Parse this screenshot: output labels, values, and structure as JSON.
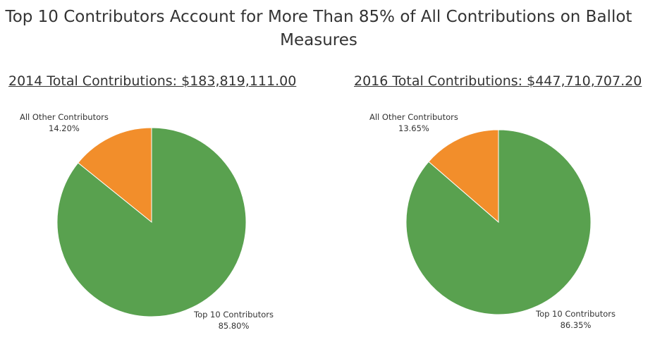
{
  "title_line1": "Top 10 Contributors Account for More Than 85% of All Contributions on Ballot",
  "title_line2": "Measures",
  "colors": {
    "top10": "#59A14F",
    "other": "#F28E2B"
  },
  "chart_data": [
    {
      "type": "pie",
      "title": "2014 Total Contributions: $183,819,111.00",
      "slices": [
        {
          "name": "All Other Contributors",
          "value": 14.2,
          "label": "14.20%",
          "color": "#F28E2B"
        },
        {
          "name": "Top 10 Contributors",
          "value": 85.8,
          "label": "85.80%",
          "color": "#59A14F"
        }
      ]
    },
    {
      "type": "pie",
      "title": "2016 Total Contributions: $447,710,707.20",
      "slices": [
        {
          "name": "All Other Contributors",
          "value": 13.65,
          "label": "13.65%",
          "color": "#F28E2B"
        },
        {
          "name": "Top 10 Contributors",
          "value": 86.35,
          "label": "86.35%",
          "color": "#59A14F"
        }
      ]
    }
  ]
}
